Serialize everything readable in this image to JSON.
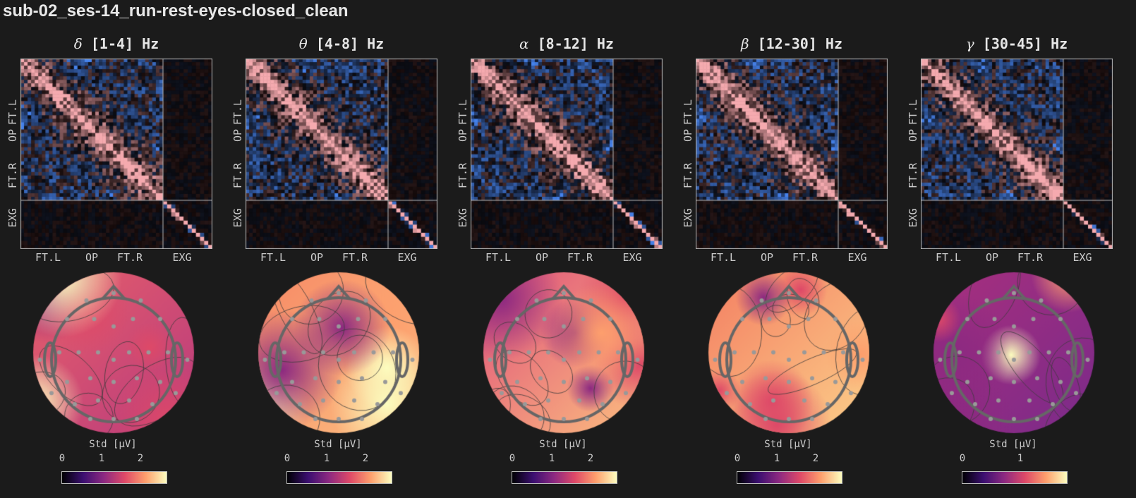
{
  "title": "sub-02_ses-14_run-rest-eyes-closed_clean",
  "chart_data": [
    {
      "type": "heatmap",
      "band_symbol": "δ",
      "band_range": "[1-4] Hz",
      "tick_labels": [
        "FT.L",
        "OP",
        "FT.R",
        "EXG"
      ],
      "colorbar": {
        "label": "Std [μV]",
        "ticks": [
          "0",
          "1",
          "2"
        ]
      }
    },
    {
      "type": "heatmap",
      "band_symbol": "θ",
      "band_range": "[4-8] Hz",
      "tick_labels": [
        "FT.L",
        "OP",
        "FT.R",
        "EXG"
      ],
      "colorbar": {
        "label": "Std [μV]",
        "ticks": [
          "0",
          "1",
          "2"
        ]
      }
    },
    {
      "type": "heatmap",
      "band_symbol": "α",
      "band_range": "[8-12] Hz",
      "tick_labels": [
        "FT.L",
        "OP",
        "FT.R",
        "EXG"
      ],
      "colorbar": {
        "label": "Std [μV]",
        "ticks": [
          "0",
          "1",
          "2"
        ]
      }
    },
    {
      "type": "heatmap",
      "band_symbol": "β",
      "band_range": "[12-30] Hz",
      "tick_labels": [
        "FT.L",
        "OP",
        "FT.R",
        "EXG"
      ],
      "colorbar": {
        "label": "Std [μV]",
        "ticks": [
          "0",
          "1",
          "2"
        ]
      }
    },
    {
      "type": "heatmap",
      "band_symbol": "γ",
      "band_range": "[30-45] Hz",
      "tick_labels": [
        "FT.L",
        "OP",
        "FT.R",
        "EXG"
      ],
      "colorbar": {
        "label": "Std [μV]",
        "ticks": [
          "0",
          "1"
        ]
      }
    }
  ],
  "colors": {
    "background": "#1b1b1b",
    "positive": "#f4a0a8",
    "negative": "#4a8ae8",
    "colormap": "magma"
  }
}
